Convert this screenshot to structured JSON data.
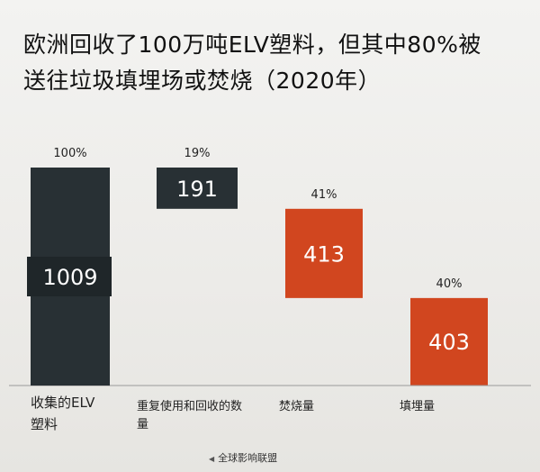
{
  "title_line1": "欧洲回收了100万吨ELV塑料，但其中80%被",
  "title_line2": "送往垃圾填埋场或焚烧（2020年）",
  "source": "全球影响联盟",
  "colors": {
    "dark": "#283034",
    "orange": "#d1461f",
    "axis": "#9a9a9a"
  },
  "chart_data": {
    "type": "bar",
    "subtype": "waterfall",
    "title": "欧洲回收了100万吨ELV塑料，但其中80%被送往垃圾填埋场或焚烧（2020年）",
    "categories": [
      "收集的ELV塑料",
      "重复使用和回收的数量",
      "焚烧量",
      "填埋量"
    ],
    "category_lines": [
      [
        "收集的ELV",
        "塑料"
      ],
      [
        "重复使用和回收的数",
        "量"
      ],
      [
        "焚烧量"
      ],
      [
        "填埋量"
      ]
    ],
    "values": [
      1009,
      191,
      413,
      403
    ],
    "value_labels": [
      "1009",
      "191",
      "413",
      "403"
    ],
    "percent_labels": [
      "100%",
      "19%",
      "41%",
      "40%"
    ],
    "bar_colors": [
      "dark",
      "dark",
      "orange",
      "orange"
    ],
    "total": 1009
  }
}
